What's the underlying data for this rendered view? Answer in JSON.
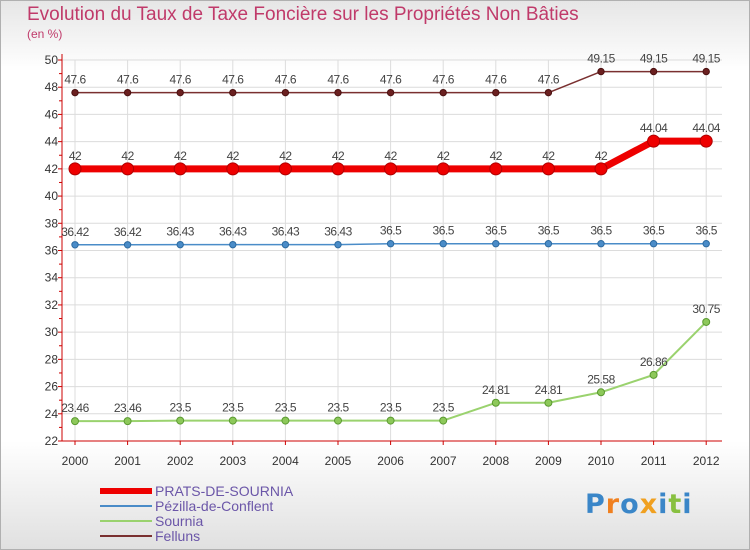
{
  "chart_data": {
    "type": "line",
    "title": "Evolution du Taux de Taxe Foncière sur les Propriétés Non Bâties",
    "subtitle": "(en %)",
    "xlabel": "",
    "ylabel": "(en %)",
    "categories": [
      "2000",
      "2001",
      "2002",
      "2003",
      "2004",
      "2005",
      "2006",
      "2007",
      "2008",
      "2009",
      "2010",
      "2011",
      "2012"
    ],
    "yticks": [
      "22",
      "24",
      "26",
      "28",
      "30",
      "32",
      "34",
      "36",
      "38",
      "40",
      "42",
      "44",
      "46",
      "48",
      "50"
    ],
    "ylim": [
      22,
      50
    ],
    "grid": true,
    "series": [
      {
        "name": "PRATS-DE-SOURNIA",
        "color": "#ee0000",
        "values": [
          42,
          42,
          42,
          42,
          42,
          42,
          42,
          42,
          42,
          42,
          42,
          44.04,
          44.04
        ],
        "labels": [
          "42",
          "42",
          "42",
          "42",
          "42",
          "42",
          "42",
          "42",
          "42",
          "42",
          "42",
          "44.04",
          "44.04"
        ]
      },
      {
        "name": "Pézilla-de-Conflent",
        "color": "#4a8cc8",
        "values": [
          36.42,
          36.42,
          36.43,
          36.43,
          36.43,
          36.43,
          36.5,
          36.5,
          36.5,
          36.5,
          36.5,
          36.5,
          36.5
        ],
        "labels": [
          "36.42",
          "36.42",
          "36.43",
          "36.43",
          "36.43",
          "36.43",
          "36.5",
          "36.5",
          "36.5",
          "36.5",
          "36.5",
          "36.5",
          "36.5"
        ]
      },
      {
        "name": "Sournia",
        "color": "#9ad26e",
        "values": [
          23.46,
          23.46,
          23.5,
          23.5,
          23.5,
          23.5,
          23.5,
          23.5,
          24.81,
          24.81,
          25.58,
          26.86,
          30.75
        ],
        "labels": [
          "23.46",
          "23.46",
          "23.5",
          "23.5",
          "23.5",
          "23.5",
          "23.5",
          "23.5",
          "24.81",
          "24.81",
          "25.58",
          "26.86",
          "30.75"
        ]
      },
      {
        "name": "Felluns",
        "color": "#7a3030",
        "values": [
          47.6,
          47.6,
          47.6,
          47.6,
          47.6,
          47.6,
          47.6,
          47.6,
          47.6,
          47.6,
          49.15,
          49.15,
          49.15
        ],
        "labels": [
          "47.6",
          "47.6",
          "47.6",
          "47.6",
          "47.6",
          "47.6",
          "47.6",
          "47.6",
          "47.6",
          "47.6",
          "49.15",
          "49.15",
          "49.15"
        ]
      }
    ],
    "legend": [
      "PRATS-DE-SOURNIA",
      "Pézilla-de-Conflent",
      "Sournia",
      "Felluns"
    ],
    "legend_position": "bottom-left"
  },
  "logo": {
    "text": "Proxiti",
    "letters": [
      "P",
      "r",
      "o",
      "x",
      "i",
      "t",
      "i"
    ],
    "colors": [
      "#3a86c8",
      "#f08020",
      "#3a86c8",
      "#f0a020",
      "#3a86c8",
      "#88c040",
      "#3a86c8"
    ]
  }
}
